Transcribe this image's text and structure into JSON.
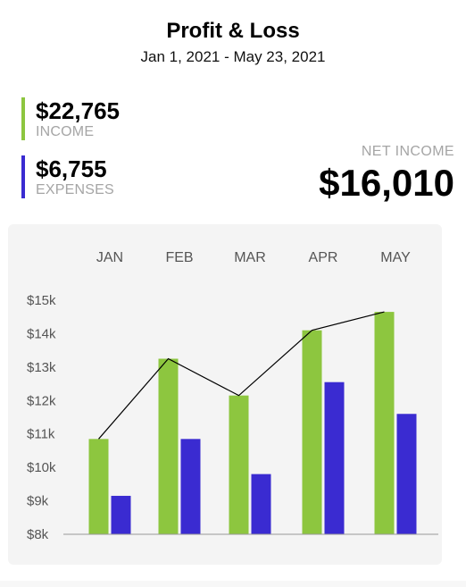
{
  "header": {
    "title": "Profit & Loss",
    "date_range": "Jan 1, 2021 - May 23, 2021"
  },
  "summary": {
    "income": {
      "value": "$22,765",
      "label": "INCOME",
      "color": "#8dc63f"
    },
    "expenses": {
      "value": "$6,755",
      "label": "EXPENSES",
      "color": "#3a2bd1"
    },
    "net_income": {
      "label": "NET INCOME",
      "value": "$16,010"
    }
  },
  "chart_data": {
    "type": "bar",
    "categories": [
      "JAN",
      "FEB",
      "MAR",
      "APR",
      "MAY"
    ],
    "series": [
      {
        "values": [
          10.85,
          13.25,
          12.15,
          14.1,
          14.65
        ],
        "color": "#8dc63f"
      },
      {
        "values": [
          9.15,
          10.85,
          9.8,
          12.55,
          11.6
        ],
        "color": "#3a2bd1"
      }
    ],
    "line": {
      "values": [
        10.85,
        13.25,
        12.15,
        14.1,
        14.65
      ],
      "color": "#000000"
    },
    "y_ticks": [
      "$8k",
      "$9k",
      "$10k",
      "$11k",
      "$12k",
      "$13k",
      "$14k",
      "$15k"
    ],
    "ylim": [
      8,
      15
    ],
    "grid": false
  }
}
